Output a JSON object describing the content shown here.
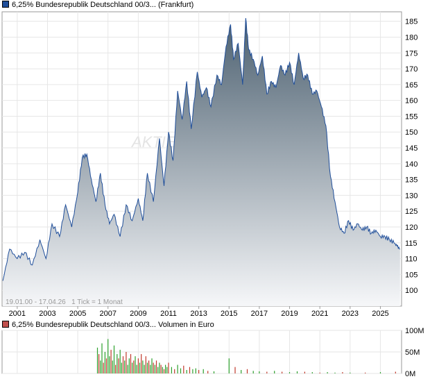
{
  "price_legend": "6,25% Bundesrepublik Deutschland 00/3... (Frankfurt)",
  "volume_legend": "6,25% Bundesrepublik Deutschland 00/3... Volumen in Euro",
  "range_info": "19.01.00 - 17.04.26   1 Tick = 1 Monat",
  "watermark": "AKTIEN",
  "colors": {
    "line": "#1f4e9a",
    "area_top": "#4c6070",
    "area_bottom": "#f6f7f9",
    "volume_up": "#2ca02c",
    "volume_down": "#c0392b"
  },
  "chart_data": [
    {
      "type": "area",
      "series": [
        {
          "name": "6,25% Bundesrepublik Deutschland 00/3... (Frankfurt)",
          "x": [
            2000.05,
            2000.5,
            2001.0,
            2001.5,
            2002.0,
            2002.5,
            2002.9,
            2003.3,
            2003.8,
            2004.2,
            2004.6,
            2005.0,
            2005.3,
            2005.6,
            2005.9,
            2006.2,
            2006.5,
            2006.8,
            2007.1,
            2007.4,
            2007.8,
            2008.2,
            2008.6,
            2009.0,
            2009.3,
            2009.6,
            2010.0,
            2010.4,
            2010.7,
            2011.0,
            2011.3,
            2011.6,
            2011.9,
            2012.2,
            2012.5,
            2012.9,
            2013.2,
            2013.5,
            2013.8,
            2014.2,
            2014.5,
            2014.8,
            2015.1,
            2015.3,
            2015.6,
            2015.9,
            2016.1,
            2016.3,
            2016.6,
            2016.9,
            2017.2,
            2017.5,
            2017.8,
            2018.1,
            2018.4,
            2018.7,
            2019.0,
            2019.3,
            2019.6,
            2019.9,
            2020.2,
            2020.5,
            2020.8,
            2021.1,
            2021.4,
            2021.7,
            2022.0,
            2022.3,
            2022.6,
            2022.9,
            2023.2,
            2023.5,
            2023.8,
            2024.1,
            2024.4,
            2024.7,
            2025.0,
            2025.3,
            2025.6,
            2025.9,
            2026.1,
            2026.3
          ],
          "values": [
            103,
            113,
            110,
            112,
            108,
            116,
            110,
            121,
            117,
            127,
            120,
            131,
            142,
            143,
            135,
            128,
            137,
            127,
            121,
            124,
            117,
            127,
            122,
            129,
            122,
            137,
            128,
            148,
            133,
            150,
            141,
            163,
            154,
            166,
            151,
            169,
            161,
            164,
            158,
            168,
            165,
            177,
            184,
            173,
            178,
            165,
            186,
            176,
            173,
            168,
            174,
            162,
            166,
            164,
            171,
            168,
            172,
            165,
            175,
            167,
            168,
            162,
            163,
            158,
            152,
            136,
            128,
            120,
            118,
            122,
            119,
            121,
            119,
            120,
            118,
            119,
            117,
            117,
            116,
            115,
            114,
            113
          ]
        }
      ],
      "x_tick_labels": [
        "2001",
        "2003",
        "2005",
        "2007",
        "2009",
        "2011",
        "2013",
        "2015",
        "2017",
        "2019",
        "2021",
        "2023",
        "2025"
      ],
      "y_tick_labels": [
        "100",
        "105",
        "110",
        "115",
        "120",
        "125",
        "130",
        "135",
        "140",
        "145",
        "150",
        "155",
        "160",
        "165",
        "170",
        "175",
        "180",
        "185"
      ],
      "ylim": [
        95,
        188
      ],
      "grid": true
    },
    {
      "type": "bar",
      "y_tick_labels": [
        "0M",
        "50M",
        "100M"
      ],
      "ylim": [
        0,
        100
      ],
      "x": [
        2006.3,
        2006.4,
        2006.5,
        2006.6,
        2006.7,
        2006.8,
        2006.9,
        2007.0,
        2007.1,
        2007.2,
        2007.3,
        2007.4,
        2007.5,
        2007.6,
        2007.7,
        2007.8,
        2007.9,
        2008.0,
        2008.1,
        2008.2,
        2008.3,
        2008.4,
        2008.5,
        2008.6,
        2008.7,
        2008.8,
        2008.9,
        2009.0,
        2009.1,
        2009.2,
        2009.3,
        2009.4,
        2009.5,
        2009.6,
        2009.7,
        2009.8,
        2009.9,
        2010.0,
        2010.1,
        2010.2,
        2010.3,
        2010.4,
        2010.5,
        2010.6,
        2010.7,
        2010.8,
        2010.9,
        2011.0,
        2011.2,
        2011.4,
        2011.6,
        2011.8,
        2012.0,
        2012.2,
        2012.4,
        2012.6,
        2012.8,
        2013.0,
        2013.3,
        2013.6,
        2014.0,
        2015.0,
        2015.4,
        2015.8,
        2016.2,
        2016.6,
        2017.0,
        2017.5,
        2018.0,
        2018.5,
        2019.0,
        2019.5,
        2020.0,
        2020.5,
        2021.0,
        2021.5,
        2022.0,
        2022.5,
        2023.0,
        2024.0,
        2025.0,
        2026.0
      ],
      "values": [
        60,
        45,
        30,
        70,
        25,
        50,
        35,
        80,
        40,
        55,
        30,
        65,
        20,
        45,
        35,
        55,
        25,
        40,
        30,
        50,
        20,
        35,
        45,
        25,
        30,
        40,
        20,
        35,
        25,
        45,
        30,
        20,
        40,
        25,
        30,
        20,
        35,
        25,
        20,
        30,
        15,
        25,
        20,
        15,
        10,
        20,
        15,
        25,
        15,
        10,
        20,
        12,
        18,
        8,
        15,
        10,
        12,
        8,
        10,
        6,
        5,
        35,
        15,
        8,
        10,
        6,
        5,
        4,
        6,
        4,
        3,
        5,
        4,
        3,
        2,
        3,
        2,
        3,
        2,
        2,
        3,
        4
      ],
      "up": [
        1,
        0,
        1,
        1,
        0,
        1,
        0,
        1,
        1,
        0,
        1,
        1,
        0,
        1,
        0,
        1,
        1,
        0,
        1,
        0,
        1,
        1,
        0,
        1,
        0,
        1,
        1,
        0,
        1,
        0,
        1,
        1,
        0,
        1,
        0,
        1,
        1,
        0,
        1,
        0,
        1,
        1,
        0,
        1,
        0,
        1,
        1,
        0,
        1,
        0,
        1,
        1,
        0,
        1,
        0,
        1,
        1,
        0,
        1,
        0,
        1,
        1,
        0,
        1,
        0,
        1,
        1,
        0,
        1,
        0,
        1,
        1,
        0,
        1,
        0,
        1,
        1,
        0,
        1,
        0,
        1,
        0
      ]
    }
  ]
}
